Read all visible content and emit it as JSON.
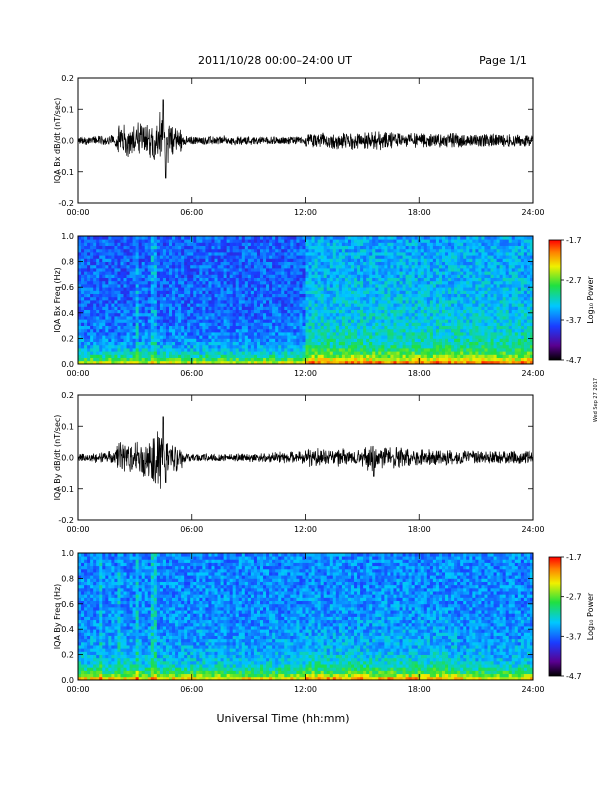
{
  "header": {
    "title": "2011/10/28  00:00–24:00 UT",
    "page": "Page 1/1"
  },
  "footer": {
    "xlabel": "Universal Time (hh:mm)",
    "side_note": "Wed Sep 27 2017"
  },
  "colorbar": {
    "label": "Log₁₀ Power",
    "ticks": [
      "-1.7",
      "-2.7",
      "-3.7",
      "-4.7"
    ],
    "range": [
      -4.7,
      -1.7
    ]
  },
  "chart_data": [
    {
      "type": "line",
      "ylabel": "IQA Bx dB/dt (nT/sec)",
      "xlabel": "",
      "x_ticks": [
        "00:00",
        "06:00",
        "12:00",
        "18:00",
        "24:00"
      ],
      "y_ticks": [
        "0.2",
        "0.1",
        "0.0",
        "-0.1",
        "-0.2"
      ],
      "xlim": [
        0,
        24
      ],
      "ylim": [
        -0.2,
        0.2
      ],
      "series": [
        {
          "x": [
            0,
            1,
            2,
            3,
            3.5,
            4,
            4.5,
            4.6,
            5,
            6,
            8,
            10,
            12,
            14,
            16,
            18,
            20,
            22,
            24
          ],
          "values": [
            0.0,
            0.01,
            0.02,
            0.03,
            0.05,
            0.06,
            0.13,
            -0.12,
            0.02,
            0.0,
            -0.01,
            0.0,
            0.0,
            0.02,
            0.02,
            0.01,
            0.01,
            0.0,
            0.0
          ]
        }
      ]
    },
    {
      "type": "heatmap",
      "ylabel": "IQA Bx Freq (Hz)",
      "x_ticks": [
        "00:00",
        "06:00",
        "12:00",
        "18:00",
        "24:00"
      ],
      "y_ticks": [
        "1.0",
        "0.8",
        "0.6",
        "0.4",
        "0.2",
        "0.0"
      ],
      "xlim": [
        0,
        24
      ],
      "ylim": [
        0,
        1
      ],
      "colorbar_ticks": [
        "-1.7",
        "-2.7",
        "-3.7",
        "-4.7"
      ]
    },
    {
      "type": "line",
      "ylabel": "IQA By dB/dt (nT/sec)",
      "x_ticks": [
        "00:00",
        "06:00",
        "12:00",
        "18:00",
        "24:00"
      ],
      "y_ticks": [
        "0.2",
        "0.1",
        "0.0",
        "-0.1",
        "-0.2"
      ],
      "xlim": [
        0,
        24
      ],
      "ylim": [
        -0.2,
        0.2
      ],
      "series": [
        {
          "x": [
            0,
            1,
            2,
            3,
            3.5,
            4,
            4.5,
            4.6,
            5,
            6,
            8,
            10,
            12,
            14,
            15.6,
            16,
            18,
            20,
            22,
            24
          ],
          "values": [
            0.0,
            0.01,
            0.02,
            0.03,
            0.05,
            0.08,
            0.13,
            -0.08,
            0.02,
            0.0,
            0.0,
            0.01,
            0.02,
            0.02,
            -0.06,
            0.03,
            0.02,
            0.01,
            0.0,
            0.0
          ]
        }
      ]
    },
    {
      "type": "heatmap",
      "ylabel": "IQA By Freq (Hz)",
      "x_ticks": [
        "00:00",
        "06:00",
        "12:00",
        "18:00",
        "24:00"
      ],
      "y_ticks": [
        "1.0",
        "0.8",
        "0.6",
        "0.4",
        "0.2",
        "0.0"
      ],
      "xlim": [
        0,
        24
      ],
      "ylim": [
        0,
        1
      ],
      "colorbar_ticks": [
        "-1.7",
        "-2.7",
        "-3.7",
        "-4.7"
      ]
    }
  ]
}
